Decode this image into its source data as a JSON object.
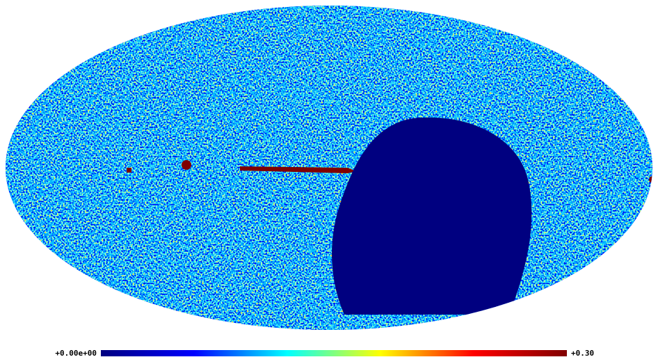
{
  "map": {
    "colorbar": {
      "lim": [
        0,
        0.3
      ],
      "ticks": [
        {
          "value": 0,
          "label": "+0.00e+00"
        },
        {
          "value": 0.3,
          "label": "+0.30"
        }
      ],
      "colors": [
        "#000080",
        "#0000ff",
        "#00ffff",
        "#ffff00",
        "#ff0000",
        "#800000"
      ]
    }
  }
}
